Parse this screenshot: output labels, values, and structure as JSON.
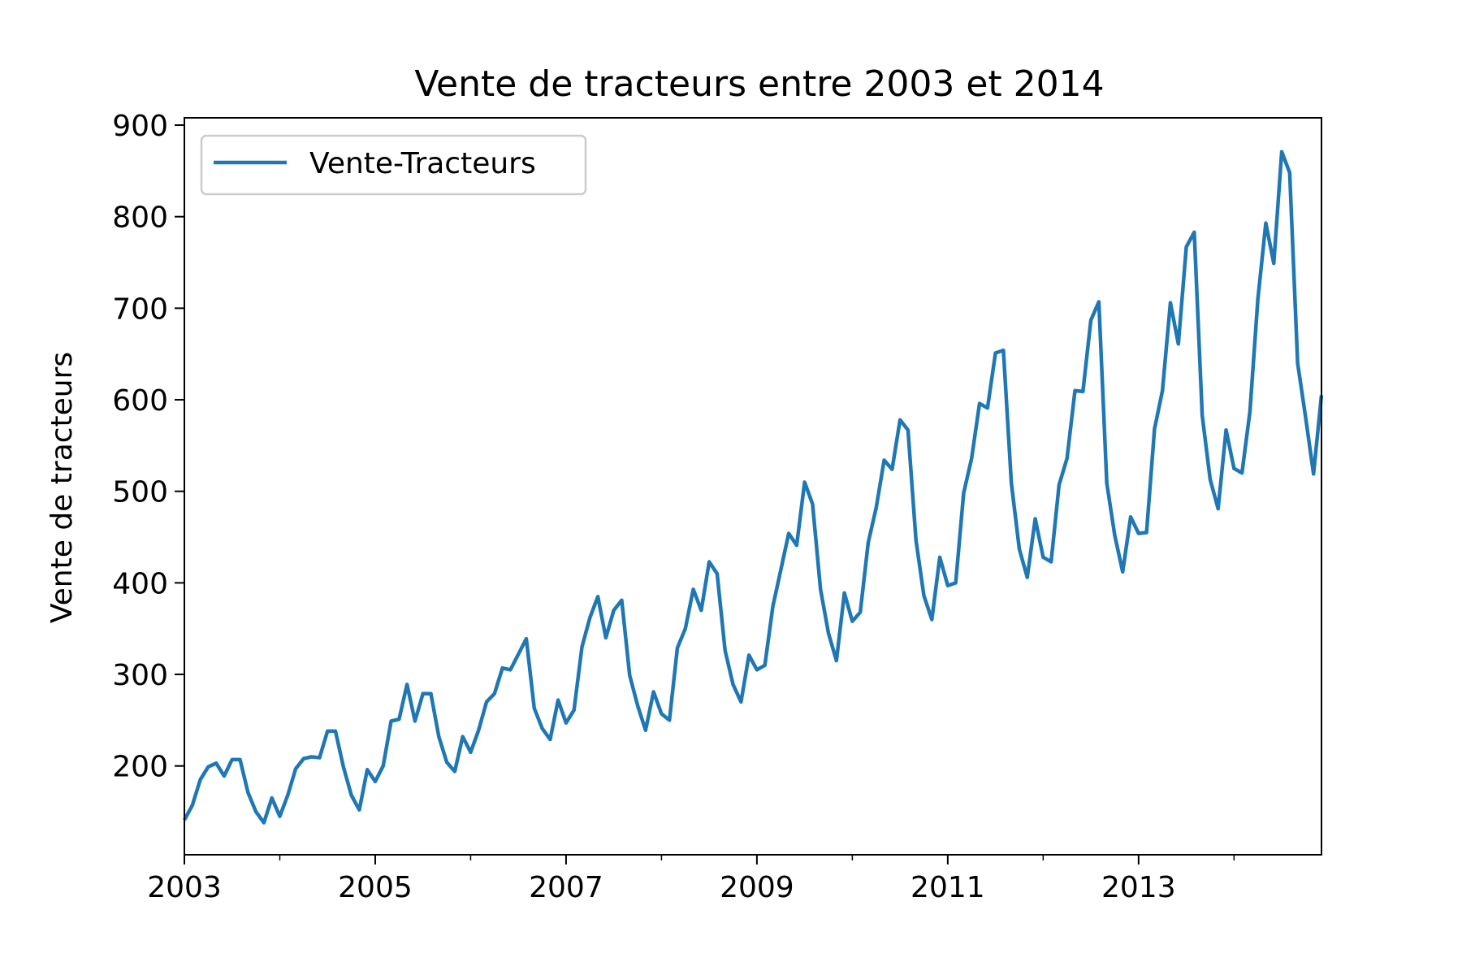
{
  "chart_data": {
    "type": "line",
    "title": "Vente de tracteurs entre 2003 et 2014",
    "xlabel": "",
    "ylabel": "Vente de tracteurs",
    "x_start": "2003-01",
    "x_frequency": "monthly",
    "x_ticks": [
      "2003",
      "2005",
      "2007",
      "2009",
      "2011",
      "2013"
    ],
    "xlim": [
      "2003-01",
      "2014-12"
    ],
    "y_ticks": [
      200,
      300,
      400,
      500,
      600,
      700,
      800,
      900
    ],
    "ylim": [
      103,
      908
    ],
    "grid": false,
    "legend_position": "upper left",
    "series": [
      {
        "name": "Vente-Tracteurs",
        "color": "#1f77b4",
        "values": [
          141,
          157,
          185,
          199,
          203,
          189,
          207,
          207,
          171,
          150,
          138,
          165,
          145,
          168,
          197,
          208,
          210,
          209,
          238,
          238,
          199,
          168,
          152,
          196,
          183,
          200,
          249,
          251,
          289,
          249,
          279,
          279,
          232,
          204,
          194,
          232,
          215,
          239,
          270,
          279,
          307,
          305,
          322,
          339,
          263,
          241,
          229,
          272,
          247,
          261,
          330,
          362,
          385,
          340,
          370,
          381,
          299,
          266,
          239,
          281,
          257,
          250,
          329,
          350,
          393,
          370,
          423,
          410,
          326,
          289,
          270,
          321,
          305,
          310,
          374,
          414,
          454,
          441,
          510,
          486,
          393,
          345,
          315,
          389,
          358,
          368,
          444,
          482,
          534,
          524,
          578,
          567,
          447,
          386,
          360,
          428,
          397,
          400,
          498,
          536,
          596,
          591,
          651,
          654,
          509,
          437,
          406,
          470,
          428,
          423,
          507,
          536,
          610,
          609,
          687,
          707,
          509,
          452,
          412,
          472,
          454,
          455,
          568,
          610,
          706,
          661,
          767,
          783,
          583,
          513,
          481,
          567,
          525,
          520,
          587,
          710,
          793,
          749,
          871,
          848,
          640,
          581,
          519,
          605
        ]
      }
    ]
  }
}
